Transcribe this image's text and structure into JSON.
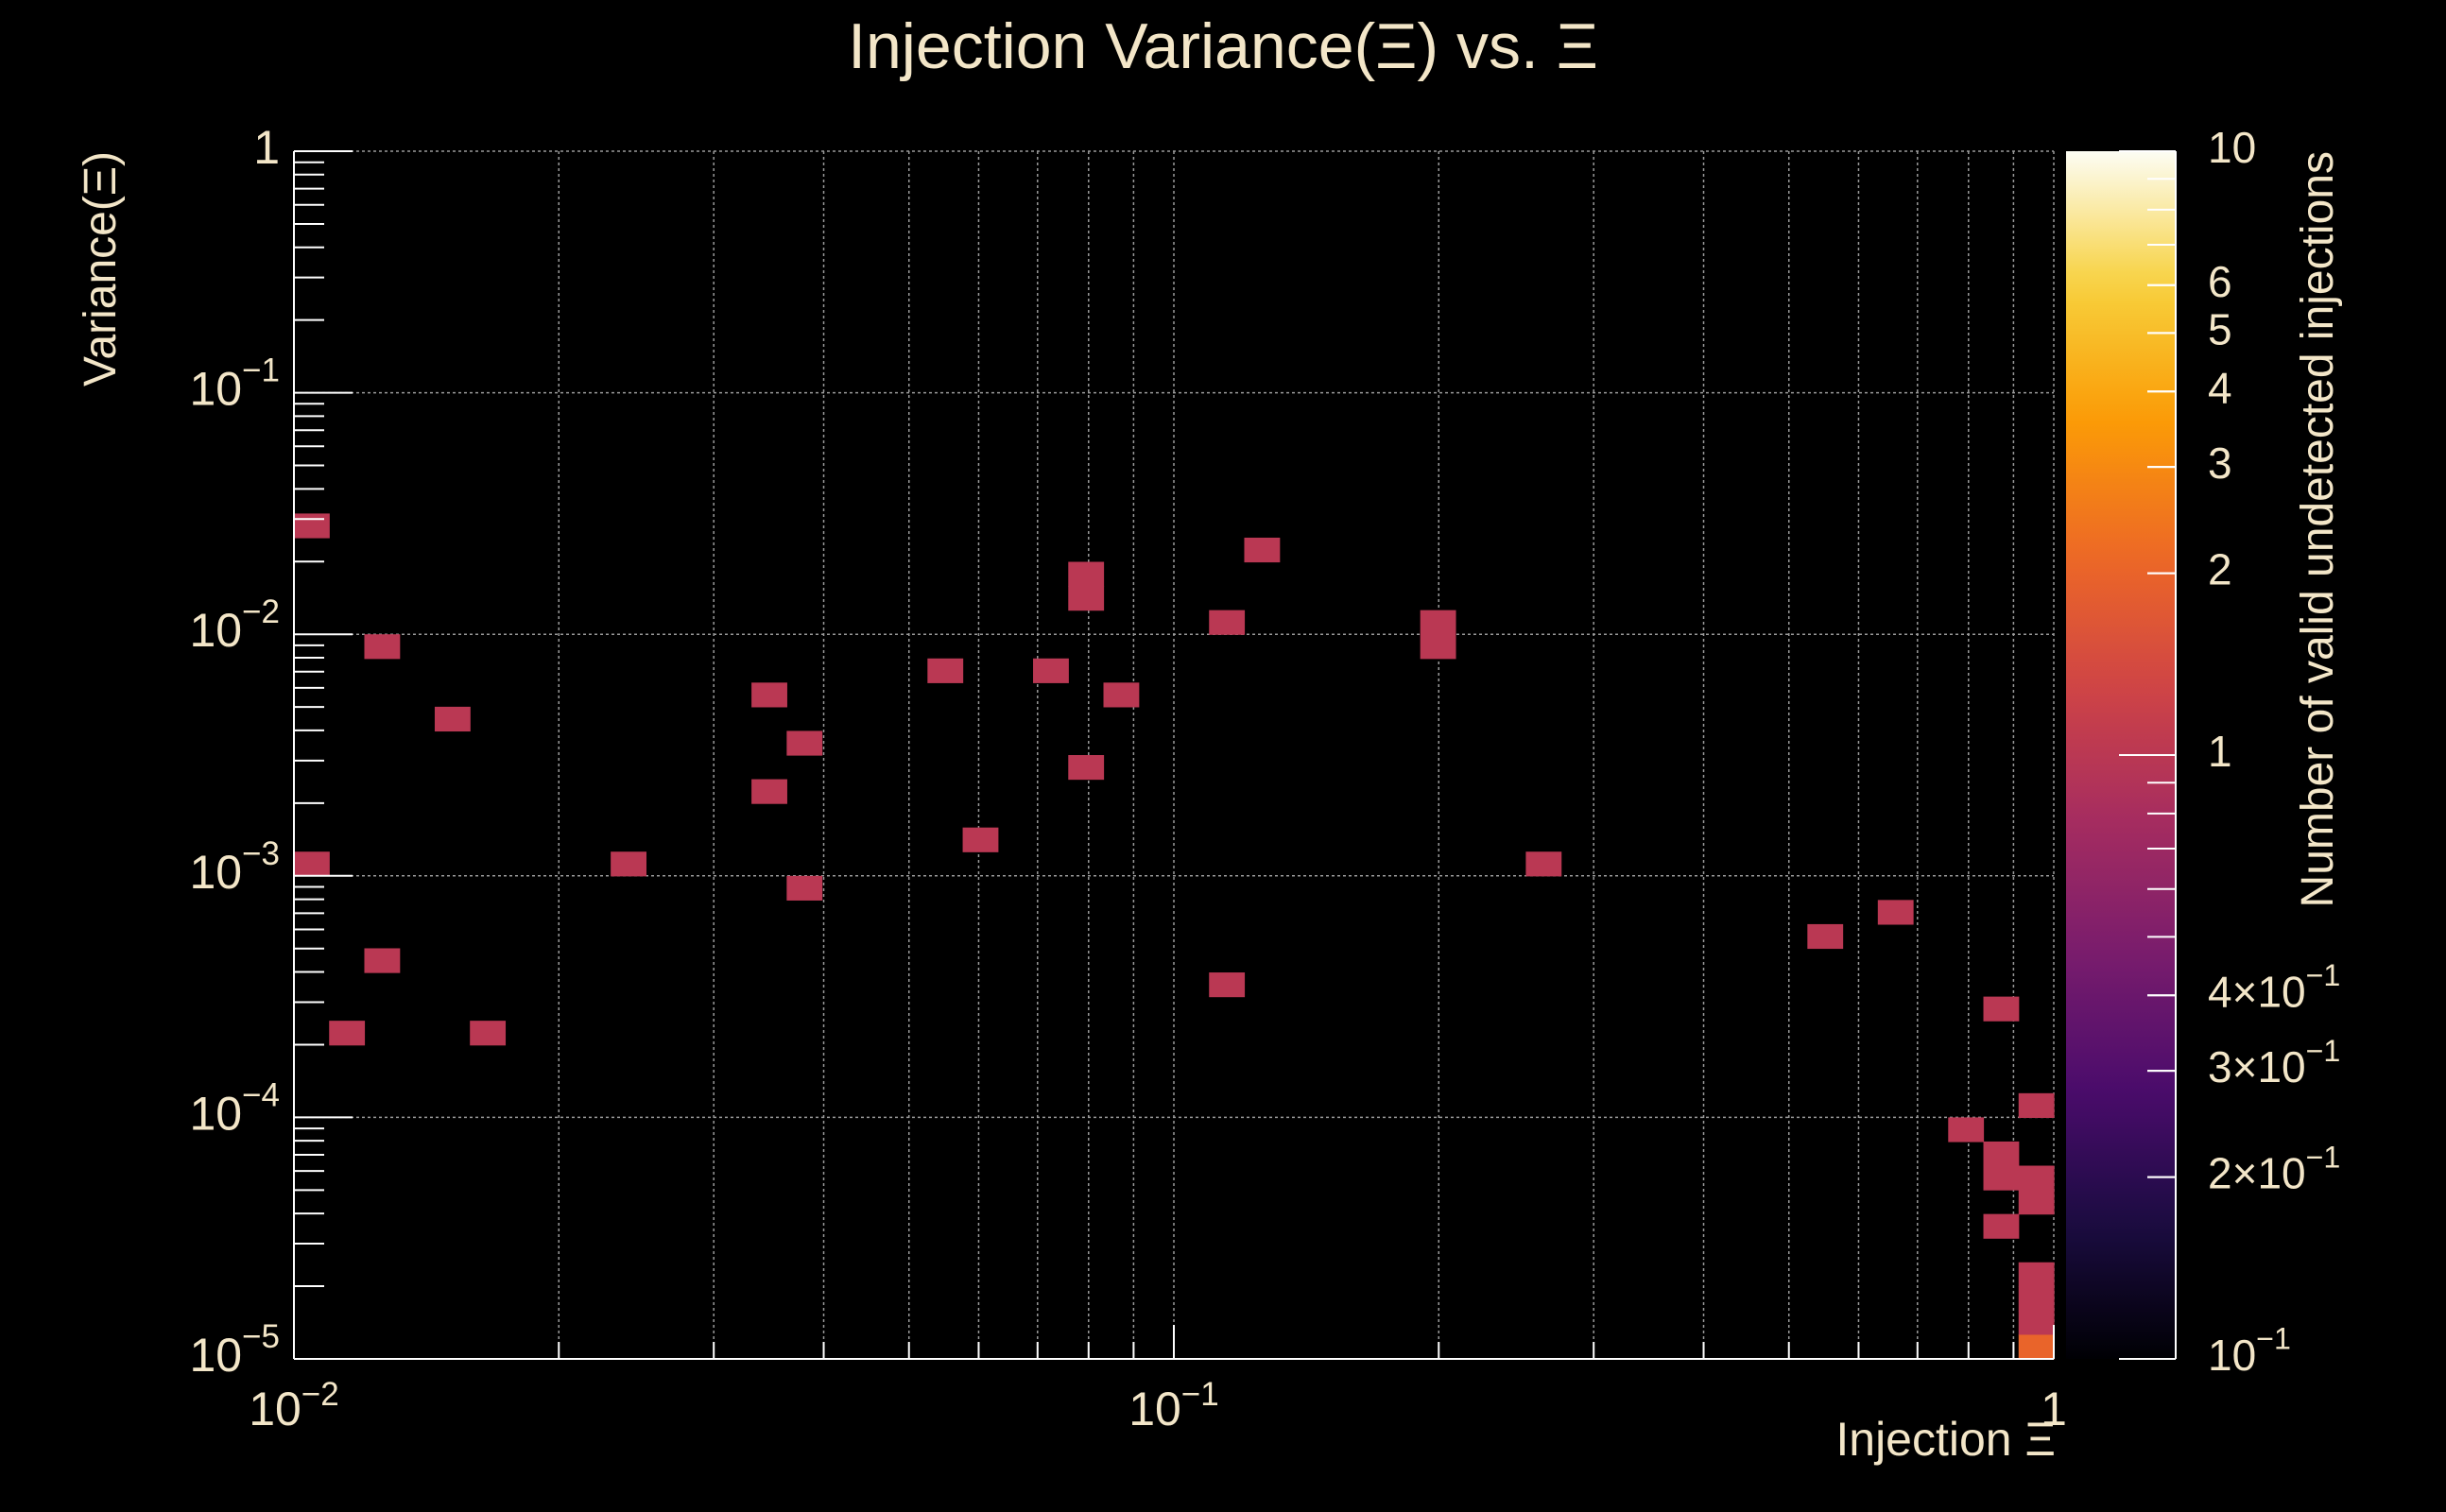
{
  "chart_data": {
    "type": "heatmap",
    "title": "Injection Variance(Ξ) vs. Ξ",
    "xlabel": "Injection Ξ",
    "ylabel": "Variance(Ξ)",
    "zlabel": "Number of valid undetected injections",
    "x_scale": "log",
    "y_scale": "log",
    "z_scale": "log",
    "xlim": [
      0.01,
      1
    ],
    "ylim": [
      1e-05,
      1
    ],
    "zlim": [
      0.1,
      10
    ],
    "grid": true,
    "x_ticks": [
      {
        "value": 0.01,
        "base": "10",
        "exp": "−2"
      },
      {
        "value": 0.1,
        "base": "10",
        "exp": "−1"
      },
      {
        "value": 1,
        "base": "1",
        "exp": ""
      }
    ],
    "y_ticks": [
      {
        "value": 1e-05,
        "base": "10",
        "exp": "−5"
      },
      {
        "value": 0.0001,
        "base": "10",
        "exp": "−4"
      },
      {
        "value": 0.001,
        "base": "10",
        "exp": "−3"
      },
      {
        "value": 0.01,
        "base": "10",
        "exp": "−2"
      },
      {
        "value": 0.1,
        "base": "10",
        "exp": "−1"
      },
      {
        "value": 1,
        "base": "1",
        "exp": ""
      }
    ],
    "z_ticks": [
      {
        "value": 10,
        "base": "10",
        "exp": ""
      },
      {
        "value": 6,
        "base": "6",
        "exp": ""
      },
      {
        "value": 5,
        "base": "5",
        "exp": ""
      },
      {
        "value": 4,
        "base": "4",
        "exp": ""
      },
      {
        "value": 3,
        "base": "3",
        "exp": ""
      },
      {
        "value": 2,
        "base": "2",
        "exp": ""
      },
      {
        "value": 1,
        "base": "1",
        "exp": ""
      },
      {
        "value": 0.4,
        "base": "4×10",
        "exp": "−1"
      },
      {
        "value": 0.3,
        "base": "3×10",
        "exp": "−1"
      },
      {
        "value": 0.2,
        "base": "2×10",
        "exp": "−1"
      },
      {
        "value": 0.1,
        "base": "10",
        "exp": "−1"
      }
    ],
    "bins": {
      "nx": 50,
      "ny": 50
    },
    "cells": [
      {
        "x": 0.0105,
        "y": 0.0282,
        "z": 1
      },
      {
        "x": 0.0105,
        "y": 0.00112,
        "z": 1
      },
      {
        "x": 0.0115,
        "y": 0.000224,
        "z": 1
      },
      {
        "x": 0.0126,
        "y": 0.00891,
        "z": 1
      },
      {
        "x": 0.0126,
        "y": 0.000447,
        "z": 1
      },
      {
        "x": 0.0151,
        "y": 0.00447,
        "z": 1
      },
      {
        "x": 0.0166,
        "y": 0.000224,
        "z": 1
      },
      {
        "x": 0.024,
        "y": 0.00112,
        "z": 1
      },
      {
        "x": 0.0347,
        "y": 0.00562,
        "z": 1
      },
      {
        "x": 0.0347,
        "y": 0.00224,
        "z": 1
      },
      {
        "x": 0.038,
        "y": 0.00355,
        "z": 1
      },
      {
        "x": 0.038,
        "y": 0.000891,
        "z": 1
      },
      {
        "x": 0.055,
        "y": 0.00708,
        "z": 1
      },
      {
        "x": 0.0603,
        "y": 0.00141,
        "z": 1
      },
      {
        "x": 0.0724,
        "y": 0.00708,
        "z": 1
      },
      {
        "x": 0.0794,
        "y": 0.0178,
        "z": 1
      },
      {
        "x": 0.0794,
        "y": 0.0141,
        "z": 1
      },
      {
        "x": 0.0794,
        "y": 0.00282,
        "z": 1
      },
      {
        "x": 0.0871,
        "y": 0.00562,
        "z": 1
      },
      {
        "x": 0.1148,
        "y": 0.0112,
        "z": 1
      },
      {
        "x": 0.1148,
        "y": 0.000355,
        "z": 1
      },
      {
        "x": 0.1259,
        "y": 0.0224,
        "z": 1
      },
      {
        "x": 0.2,
        "y": 0.0112,
        "z": 1
      },
      {
        "x": 0.2,
        "y": 0.00891,
        "z": 1
      },
      {
        "x": 0.263,
        "y": 0.00112,
        "z": 1
      },
      {
        "x": 0.5754,
        "y": 0.000562,
        "z": 1
      },
      {
        "x": 0.6918,
        "y": 0.000708,
        "z": 1
      },
      {
        "x": 0.7943,
        "y": 8.91e-05,
        "z": 1
      },
      {
        "x": 0.871,
        "y": 0.000282,
        "z": 1
      },
      {
        "x": 0.871,
        "y": 7.08e-05,
        "z": 1
      },
      {
        "x": 0.871,
        "y": 5.62e-05,
        "z": 1
      },
      {
        "x": 0.871,
        "y": 3.55e-05,
        "z": 1
      },
      {
        "x": 0.955,
        "y": 0.000112,
        "z": 1
      },
      {
        "x": 0.955,
        "y": 5.62e-05,
        "z": 1
      },
      {
        "x": 0.955,
        "y": 4.47e-05,
        "z": 1
      },
      {
        "x": 0.955,
        "y": 2.24e-05,
        "z": 1
      },
      {
        "x": 0.955,
        "y": 1.78e-05,
        "z": 1
      },
      {
        "x": 0.955,
        "y": 1.41e-05,
        "z": 1
      },
      {
        "x": 0.955,
        "y": 1.12e-05,
        "z": 2
      }
    ]
  },
  "colors": {
    "background": "#000000",
    "text": "#f3e6c8",
    "axis": "#ffffff",
    "grid": "#9a9a9a",
    "colormap": [
      "#000004",
      "#1b0c41",
      "#4a0c6b",
      "#781c6d",
      "#a52c60",
      "#cf4446",
      "#ed6925",
      "#fb9b06",
      "#f7d13d",
      "#fcfdf4"
    ]
  }
}
